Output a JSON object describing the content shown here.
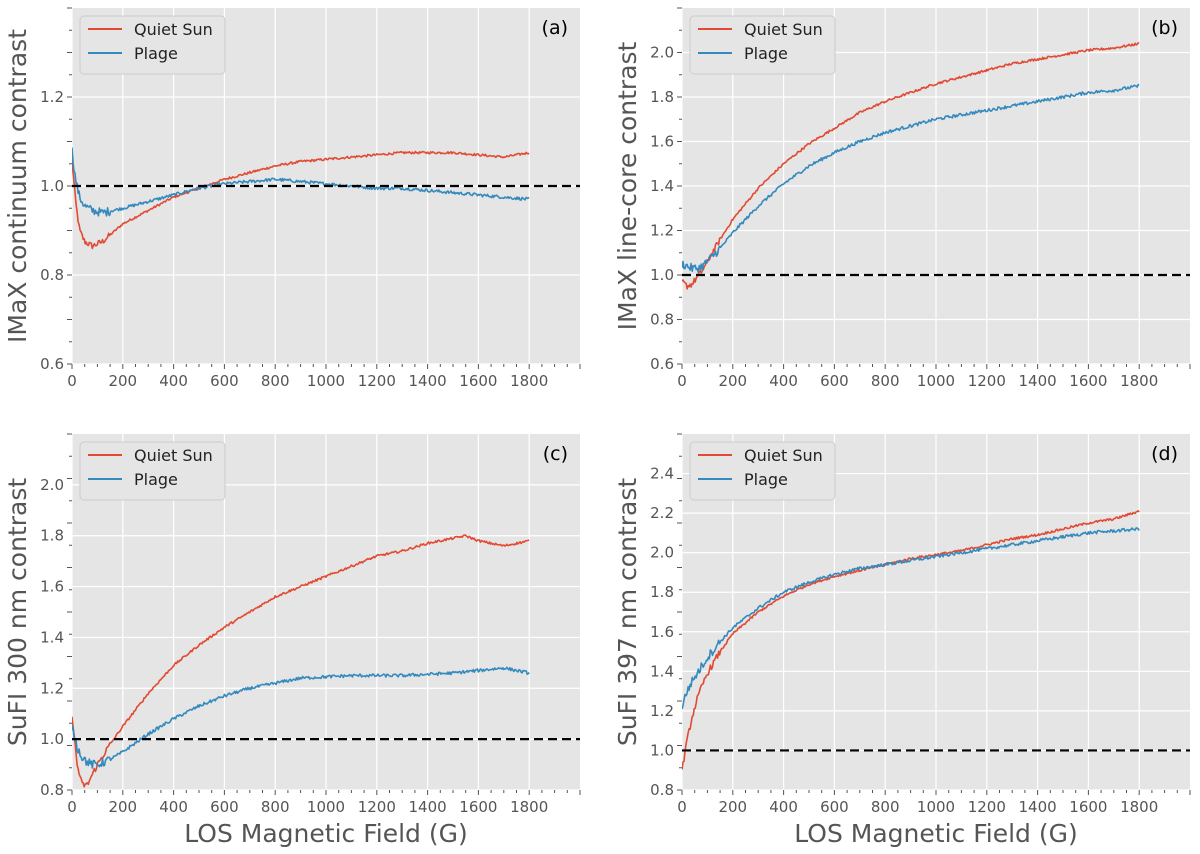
{
  "colors": {
    "quiet_sun": "#e24a33",
    "plage": "#348abd",
    "background": "#e5e5e5",
    "refline": "#000000"
  },
  "chart_data": [
    {
      "type": "line",
      "panel": "(a)",
      "xlabel": "",
      "ylabel": "IMaX continuum contrast",
      "xlim": [
        0,
        2000
      ],
      "ylim": [
        0.6,
        1.4
      ],
      "xticks": [
        "0",
        "200",
        "400",
        "600",
        "800",
        "1000",
        "1200",
        "1400",
        "1600",
        "1800"
      ],
      "yticks": [
        "0.6",
        "0.8",
        "1.0",
        "1.2"
      ],
      "reference_line": 1.0,
      "legend": [
        "Quiet Sun",
        "Plage"
      ],
      "legend_position": "top-left",
      "series": [
        {
          "name": "Quiet Sun",
          "x": [
            0,
            15,
            30,
            50,
            80,
            120,
            160,
            200,
            300,
            400,
            500,
            600,
            700,
            800,
            900,
            1000,
            1100,
            1200,
            1300,
            1400,
            1500,
            1600,
            1700,
            1800
          ],
          "y": [
            1.06,
            0.96,
            0.9,
            0.875,
            0.865,
            0.875,
            0.895,
            0.915,
            0.945,
            0.975,
            0.995,
            1.015,
            1.03,
            1.045,
            1.055,
            1.06,
            1.065,
            1.07,
            1.075,
            1.075,
            1.075,
            1.07,
            1.065,
            1.075
          ]
        },
        {
          "name": "Plage",
          "x": [
            0,
            15,
            30,
            50,
            80,
            120,
            160,
            200,
            300,
            400,
            500,
            600,
            700,
            800,
            900,
            1000,
            1100,
            1200,
            1300,
            1400,
            1500,
            1600,
            1700,
            1800
          ],
          "y": [
            1.08,
            1.01,
            0.975,
            0.955,
            0.945,
            0.94,
            0.945,
            0.95,
            0.965,
            0.98,
            0.995,
            1.005,
            1.01,
            1.015,
            1.01,
            1.005,
            1.0,
            0.995,
            0.995,
            0.99,
            0.985,
            0.98,
            0.975,
            0.97
          ]
        }
      ]
    },
    {
      "type": "line",
      "panel": "(b)",
      "xlabel": "",
      "ylabel": "IMaX line-core contrast",
      "xlim": [
        0,
        2000
      ],
      "ylim": [
        0.6,
        2.2
      ],
      "xticks": [
        "0",
        "200",
        "400",
        "600",
        "800",
        "1000",
        "1200",
        "1400",
        "1600",
        "1800"
      ],
      "yticks": [
        "0.6",
        "0.8",
        "1.0",
        "1.2",
        "1.4",
        "1.6",
        "1.8",
        "2.0"
      ],
      "reference_line": 1.0,
      "legend": [
        "Quiet Sun",
        "Plage"
      ],
      "legend_position": "top-left",
      "series": [
        {
          "name": "Quiet Sun",
          "x": [
            0,
            20,
            40,
            60,
            80,
            100,
            150,
            200,
            300,
            400,
            500,
            600,
            700,
            800,
            900,
            1000,
            1100,
            1200,
            1300,
            1400,
            1500,
            1600,
            1700,
            1800
          ],
          "y": [
            0.97,
            0.95,
            0.96,
            0.99,
            1.02,
            1.06,
            1.16,
            1.25,
            1.39,
            1.5,
            1.59,
            1.66,
            1.73,
            1.78,
            1.82,
            1.86,
            1.89,
            1.92,
            1.95,
            1.97,
            1.99,
            2.01,
            2.02,
            2.04
          ]
        },
        {
          "name": "Plage",
          "x": [
            0,
            20,
            40,
            60,
            80,
            100,
            150,
            200,
            300,
            400,
            500,
            600,
            700,
            800,
            900,
            1000,
            1100,
            1200,
            1300,
            1400,
            1500,
            1600,
            1700,
            1800
          ],
          "y": [
            1.05,
            1.04,
            1.03,
            1.03,
            1.04,
            1.06,
            1.12,
            1.19,
            1.31,
            1.41,
            1.49,
            1.55,
            1.6,
            1.64,
            1.67,
            1.7,
            1.72,
            1.74,
            1.76,
            1.78,
            1.8,
            1.82,
            1.83,
            1.85
          ]
        }
      ]
    },
    {
      "type": "line",
      "panel": "(c)",
      "xlabel": "LOS Magnetic Field (G)",
      "ylabel": "SuFI 300 nm contrast",
      "xlim": [
        0,
        2000
      ],
      "ylim": [
        0.8,
        2.2
      ],
      "xticks": [
        "0",
        "200",
        "400",
        "600",
        "800",
        "1000",
        "1200",
        "1400",
        "1600",
        "1800"
      ],
      "yticks": [
        "0.8",
        "1.0",
        "1.2",
        "1.4",
        "1.6",
        "1.8",
        "2.0"
      ],
      "reference_line": 1.0,
      "legend": [
        "Quiet Sun",
        "Plage"
      ],
      "legend_position": "top-left",
      "series": [
        {
          "name": "Quiet Sun",
          "x": [
            0,
            20,
            40,
            60,
            80,
            100,
            150,
            200,
            300,
            400,
            500,
            600,
            700,
            800,
            900,
            1000,
            1100,
            1200,
            1300,
            1400,
            1500,
            1550,
            1600,
            1650,
            1700,
            1750,
            1800
          ],
          "y": [
            1.1,
            0.9,
            0.82,
            0.82,
            0.86,
            0.9,
            0.98,
            1.05,
            1.18,
            1.29,
            1.37,
            1.44,
            1.5,
            1.56,
            1.6,
            1.64,
            1.68,
            1.72,
            1.74,
            1.77,
            1.79,
            1.8,
            1.78,
            1.77,
            1.76,
            1.77,
            1.78
          ]
        },
        {
          "name": "Plage",
          "x": [
            0,
            20,
            40,
            60,
            80,
            100,
            150,
            200,
            300,
            400,
            500,
            600,
            700,
            800,
            900,
            1000,
            1100,
            1200,
            1300,
            1400,
            1500,
            1600,
            1700,
            1800
          ],
          "y": [
            1.05,
            0.97,
            0.93,
            0.91,
            0.9,
            0.9,
            0.92,
            0.95,
            1.02,
            1.08,
            1.13,
            1.17,
            1.2,
            1.22,
            1.24,
            1.245,
            1.25,
            1.25,
            1.25,
            1.255,
            1.26,
            1.27,
            1.28,
            1.26
          ]
        }
      ]
    },
    {
      "type": "line",
      "panel": "(d)",
      "xlabel": "LOS Magnetic Field (G)",
      "ylabel": "SuFI 397 nm contrast",
      "xlim": [
        0,
        2000
      ],
      "ylim": [
        0.8,
        2.6
      ],
      "xticks": [
        "0",
        "200",
        "400",
        "600",
        "800",
        "1000",
        "1200",
        "1400",
        "1600",
        "1800"
      ],
      "yticks": [
        "0.8",
        "1.0",
        "1.2",
        "1.4",
        "1.6",
        "1.8",
        "2.0",
        "2.2",
        "2.4"
      ],
      "reference_line": 1.0,
      "legend": [
        "Quiet Sun",
        "Plage"
      ],
      "legend_position": "top-left",
      "series": [
        {
          "name": "Quiet Sun",
          "x": [
            0,
            20,
            40,
            60,
            80,
            100,
            150,
            200,
            300,
            400,
            500,
            600,
            700,
            800,
            900,
            1000,
            1100,
            1200,
            1300,
            1400,
            1500,
            1600,
            1700,
            1800
          ],
          "y": [
            0.9,
            1.05,
            1.17,
            1.26,
            1.33,
            1.39,
            1.5,
            1.59,
            1.7,
            1.78,
            1.84,
            1.88,
            1.91,
            1.94,
            1.97,
            1.99,
            2.01,
            2.04,
            2.07,
            2.09,
            2.12,
            2.15,
            2.17,
            2.21
          ]
        },
        {
          "name": "Plage",
          "x": [
            0,
            20,
            40,
            60,
            80,
            100,
            150,
            200,
            300,
            400,
            500,
            600,
            700,
            800,
            900,
            1000,
            1100,
            1200,
            1300,
            1400,
            1500,
            1600,
            1700,
            1800
          ],
          "y": [
            1.22,
            1.3,
            1.35,
            1.39,
            1.43,
            1.47,
            1.55,
            1.62,
            1.72,
            1.8,
            1.85,
            1.89,
            1.92,
            1.94,
            1.96,
            1.98,
            2.0,
            2.02,
            2.04,
            2.06,
            2.08,
            2.1,
            2.11,
            2.12
          ]
        }
      ]
    }
  ]
}
